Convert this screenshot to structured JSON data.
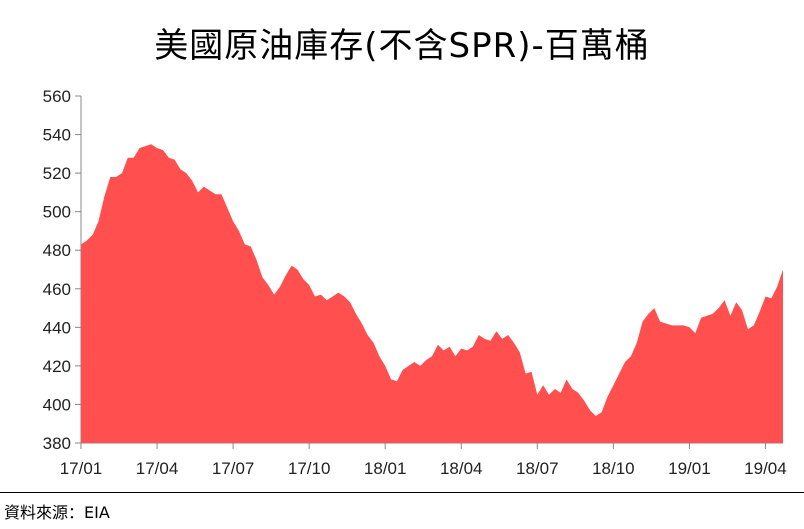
{
  "chart_data": {
    "type": "area",
    "title": "美國原油庫存(不含SPR)-百萬桶",
    "xlabel": "",
    "ylabel": "",
    "ylim": [
      380,
      560
    ],
    "yticks": [
      380,
      400,
      420,
      440,
      460,
      480,
      500,
      520,
      540,
      560
    ],
    "xtick_labels": [
      "17/01",
      "17/04",
      "17/07",
      "17/10",
      "18/01",
      "18/04",
      "18/07",
      "18/10",
      "19/01",
      "19/04"
    ],
    "grid": false,
    "color": "#ff4f4f",
    "x_weeks": "weekly, 2017/01 to 2019/05",
    "values": [
      483,
      485,
      488,
      495,
      508,
      518,
      518,
      520,
      528,
      528,
      533,
      534,
      535,
      533,
      532,
      528,
      527,
      522,
      520,
      516,
      510,
      513,
      511,
      509,
      509,
      502,
      495,
      490,
      483,
      482,
      475,
      466,
      462,
      457,
      461,
      467,
      472,
      470,
      465,
      462,
      456,
      457,
      454,
      456,
      458,
      456,
      453,
      447,
      442,
      436,
      432,
      425,
      420,
      413,
      412,
      418,
      420,
      422,
      420,
      423,
      425,
      431,
      428,
      430,
      425,
      429,
      428,
      430,
      436,
      434,
      433,
      438,
      434,
      436,
      432,
      427,
      416,
      417,
      405,
      410,
      405,
      408,
      406,
      413,
      408,
      406,
      402,
      397,
      394,
      396,
      404,
      410,
      416,
      422,
      425,
      432,
      443,
      447,
      450,
      443,
      442,
      441,
      441,
      441,
      440,
      437,
      445,
      446,
      447,
      450,
      454,
      446,
      453,
      449,
      439,
      441,
      448,
      456,
      455,
      461,
      470
    ]
  },
  "source": "資料來源：EIA"
}
